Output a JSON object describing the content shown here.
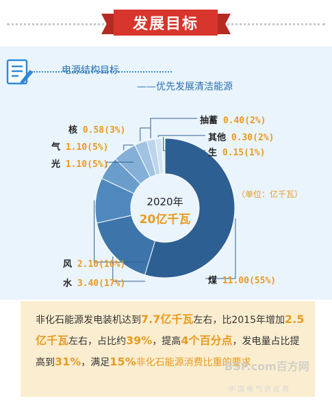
{
  "header": {
    "title": "发展目标"
  },
  "section": {
    "title": "电源结构目标",
    "subtitle": "——优先发展清洁能源"
  },
  "chart_data": {
    "type": "pie",
    "center_year": "2020年",
    "center_total": "20亿千瓦",
    "unit": "（单位：亿千瓦）",
    "slices": [
      {
        "name": "煤",
        "value": 11.0,
        "percent": "55%",
        "label": "11.00(55%)",
        "color": "#2d5f93"
      },
      {
        "name": "水",
        "value": 3.4,
        "percent": "17%",
        "label": "3.40(17%)",
        "color": "#3d75aa"
      },
      {
        "name": "风",
        "value": 2.1,
        "percent": "10%",
        "label": "2.10(10%)",
        "color": "#4f88bd"
      },
      {
        "name": "光",
        "value": 1.1,
        "percent": "5%",
        "label": "1.10(5%)",
        "color": "#6a9dcc"
      },
      {
        "name": "气",
        "value": 1.1,
        "percent": "5%",
        "label": "1.10(5%)",
        "color": "#84b0d8"
      },
      {
        "name": "核",
        "value": 0.58,
        "percent": "3%",
        "label": "0.58(3%)",
        "color": "#a1c3e3"
      },
      {
        "name": "抽蓄",
        "value": 0.4,
        "percent": "2%",
        "label": "0.40(2%)",
        "color": "#bcd5ec"
      },
      {
        "name": "其他",
        "value": 0.3,
        "percent": "2%",
        "label": "0.30(2%)",
        "color": "#d2e3f3"
      },
      {
        "name": "生",
        "value": 0.15,
        "percent": "1%",
        "label": "0.15(1%)",
        "color": "#e3eef8"
      }
    ]
  },
  "summary": {
    "p1": "非化石能源发电装机达到",
    "h1": "7.7亿千瓦",
    "p2": "左右，比2015年增加",
    "h2": "2.5亿千瓦",
    "p3": "左右，占比约",
    "h3": "39%",
    "p4": "，提高",
    "h4": "4个百分点",
    "p5": "，发电量占比提高到",
    "h5": "31%",
    "p6": "，满足",
    "h6": "15%",
    "p7": "非化石能源消费比重的要求"
  },
  "watermark": {
    "brand": "BSP.com百方网",
    "tagline": "中国电气供应商"
  }
}
